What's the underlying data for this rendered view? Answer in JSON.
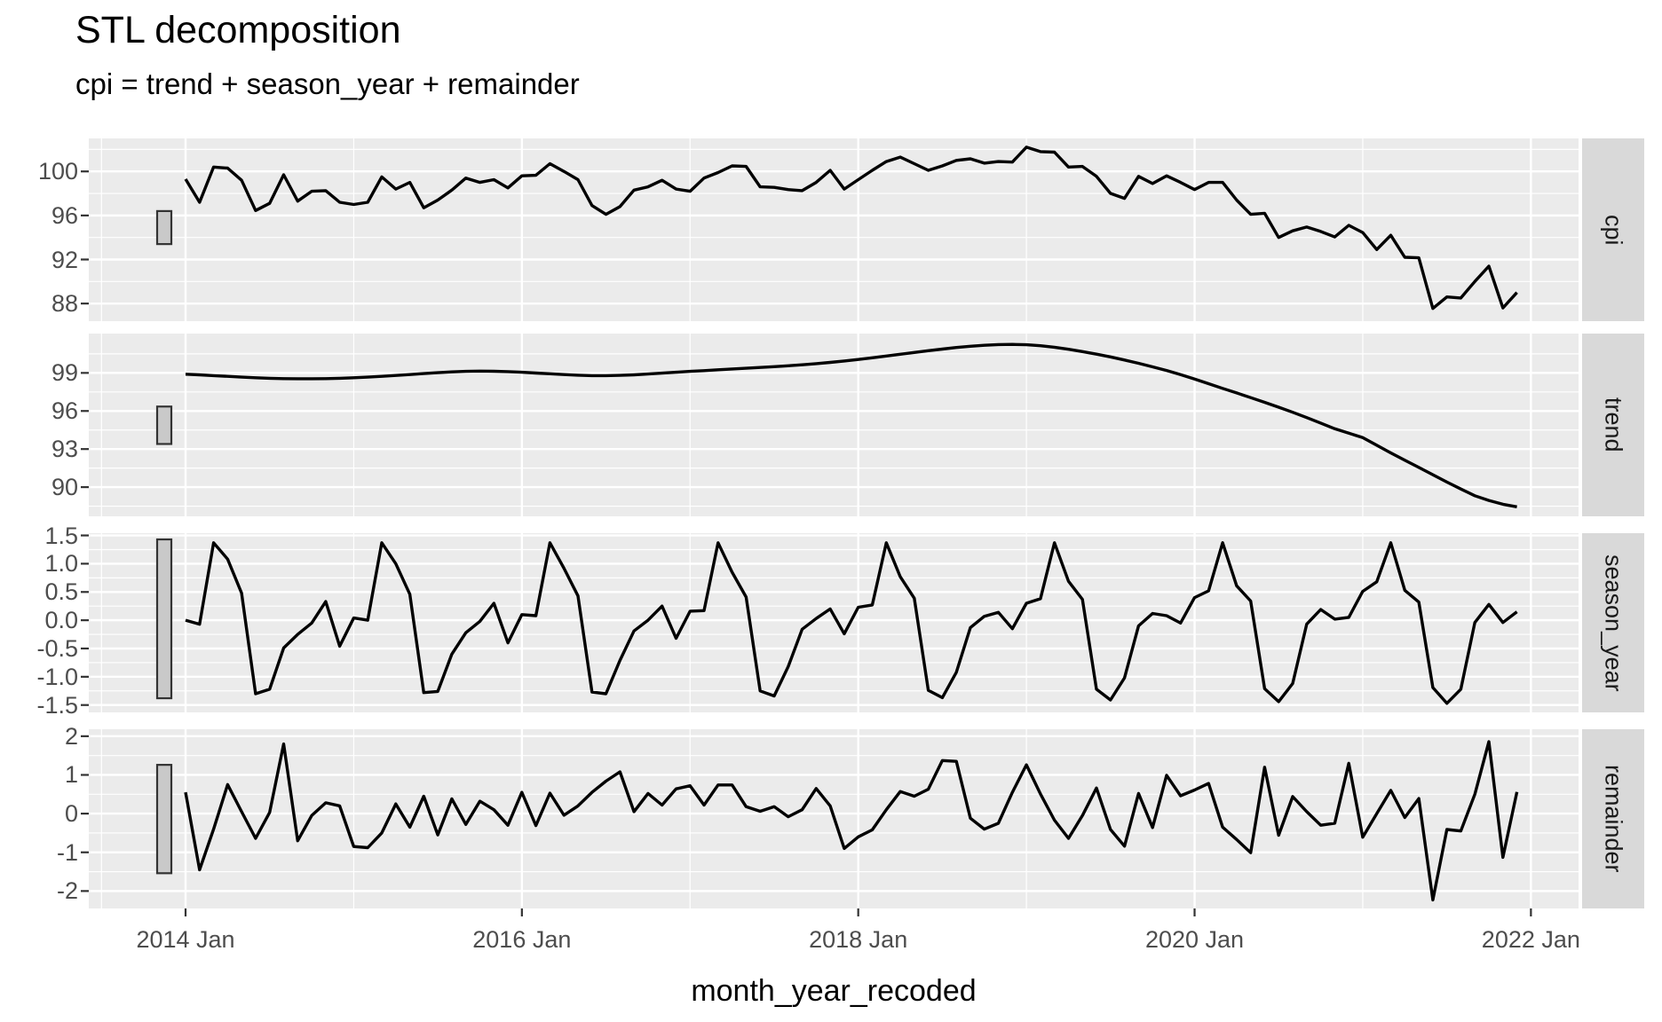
{
  "title": "STL decomposition",
  "subtitle": "cpi = trend + season_year + remainder",
  "x_axis": {
    "label": "month_year_recoded",
    "tick_labels": [
      "2014 Jan",
      "2016 Jan",
      "2018 Jan",
      "2020 Jan",
      "2022 Jan"
    ]
  },
  "chart_data": {
    "type": "line",
    "facets": "4 stacked panels sharing x axis, strip labels on right",
    "x_start": "2014 Jan",
    "x_end": "2021 Dec",
    "frequency": "monthly",
    "n_points": 96,
    "legend": "none",
    "grid": "white major and minor gridlines on gray panels",
    "panels": [
      {
        "name": "cpi",
        "ytick_labels": [
          "100",
          "96",
          "92",
          "88"
        ],
        "yticks": [
          100,
          96,
          92,
          88
        ],
        "ylim": [
          86.4,
          103.0
        ],
        "scale_bar": [
          93.4,
          96.4
        ],
        "values": [
          99.3,
          97.2,
          100.4,
          100.3,
          99.2,
          96.45,
          97.1,
          99.7,
          97.3,
          98.2,
          98.25,
          97.2,
          97.0,
          97.2,
          99.5,
          98.4,
          99.0,
          96.7,
          97.4,
          98.3,
          99.4,
          99.0,
          99.25,
          98.5,
          99.6,
          99.65,
          100.7,
          100.0,
          99.25,
          96.9,
          96.1,
          96.8,
          98.3,
          98.6,
          99.2,
          98.4,
          98.2,
          99.4,
          99.9,
          100.5,
          100.45,
          98.6,
          98.55,
          98.35,
          98.25,
          99.0,
          100.1,
          98.4,
          99.25,
          100.1,
          100.9,
          101.3,
          100.7,
          100.1,
          100.5,
          101.0,
          101.15,
          100.75,
          100.9,
          100.85,
          102.2,
          101.8,
          101.75,
          100.4,
          100.45,
          99.55,
          98.0,
          97.55,
          99.55,
          98.9,
          99.6,
          99.0,
          98.35,
          99.0,
          99.0,
          97.4,
          96.1,
          96.2,
          94.0,
          94.6,
          94.95,
          94.55,
          94.05,
          95.1,
          94.45,
          92.9,
          94.2,
          92.2,
          92.15,
          87.55,
          88.6,
          88.5,
          90.0,
          91.4,
          87.6,
          89.0
        ]
      },
      {
        "name": "trend",
        "ytick_labels": [
          "99",
          "96",
          "93",
          "90"
        ],
        "yticks": [
          99,
          96,
          93,
          90
        ],
        "ylim": [
          87.7,
          102.1
        ],
        "scale_bar": [
          93.4,
          96.35
        ],
        "values": [
          98.9,
          98.85,
          98.79,
          98.73,
          98.67,
          98.62,
          98.58,
          98.55,
          98.54,
          98.54,
          98.55,
          98.58,
          98.62,
          98.67,
          98.73,
          98.8,
          98.87,
          98.95,
          99.02,
          99.08,
          99.12,
          99.14,
          99.13,
          99.1,
          99.05,
          98.99,
          98.93,
          98.87,
          98.82,
          98.79,
          98.79,
          98.81,
          98.85,
          98.91,
          98.98,
          99.05,
          99.12,
          99.18,
          99.25,
          99.31,
          99.37,
          99.43,
          99.49,
          99.56,
          99.64,
          99.73,
          99.83,
          99.94,
          100.06,
          100.19,
          100.33,
          100.47,
          100.61,
          100.75,
          100.88,
          101.0,
          101.1,
          101.18,
          101.23,
          101.25,
          101.22,
          101.14,
          101.02,
          100.86,
          100.68,
          100.48,
          100.26,
          100.02,
          99.76,
          99.48,
          99.19,
          98.87,
          98.52,
          98.15,
          97.78,
          97.42,
          97.05,
          96.68,
          96.3,
          95.9,
          95.48,
          95.05,
          94.6,
          94.25,
          93.9,
          93.3,
          92.7,
          92.12,
          91.55,
          90.98,
          90.4,
          89.85,
          89.32,
          88.95,
          88.65,
          88.45
        ]
      },
      {
        "name": "season_year",
        "ytick_labels": [
          "1.5",
          "1.0",
          "0.5",
          "0.0",
          "-0.5",
          "-1.0",
          "-1.5"
        ],
        "yticks": [
          1.5,
          1.0,
          0.5,
          0.0,
          -0.5,
          -1.0,
          -1.5
        ],
        "ylim": [
          -1.63,
          1.54
        ],
        "scale_bar": [
          -1.38,
          1.43
        ],
        "values": [
          0.0,
          -0.07,
          1.37,
          1.08,
          0.48,
          -1.3,
          -1.22,
          -0.49,
          -0.25,
          -0.05,
          0.33,
          -0.46,
          0.04,
          0.0,
          1.37,
          1.0,
          0.46,
          -1.28,
          -1.26,
          -0.6,
          -0.22,
          -0.02,
          0.3,
          -0.4,
          0.1,
          0.08,
          1.37,
          0.92,
          0.43,
          -1.27,
          -1.3,
          -0.71,
          -0.19,
          0.0,
          0.25,
          -0.32,
          0.16,
          0.17,
          1.37,
          0.85,
          0.41,
          -1.25,
          -1.34,
          -0.82,
          -0.16,
          0.03,
          0.2,
          -0.24,
          0.23,
          0.27,
          1.37,
          0.77,
          0.39,
          -1.24,
          -1.37,
          -0.92,
          -0.13,
          0.07,
          0.14,
          -0.15,
          0.3,
          0.38,
          1.37,
          0.69,
          0.37,
          -1.22,
          -1.41,
          -1.02,
          -0.1,
          0.12,
          0.08,
          -0.05,
          0.4,
          0.52,
          1.37,
          0.61,
          0.34,
          -1.21,
          -1.44,
          -1.12,
          -0.07,
          0.19,
          0.02,
          0.05,
          0.51,
          0.68,
          1.37,
          0.53,
          0.32,
          -1.19,
          -1.47,
          -1.22,
          -0.04,
          0.28,
          -0.04,
          0.15
        ]
      },
      {
        "name": "remainder",
        "ytick_labels": [
          "2",
          "1",
          "0",
          "-1",
          "-2"
        ],
        "yticks": [
          2,
          1,
          0,
          -1,
          -2
        ],
        "ylim": [
          -2.45,
          2.18
        ],
        "scale_bar": [
          -1.54,
          1.26
        ],
        "values": [
          0.55,
          -1.45,
          -0.4,
          0.75,
          0.05,
          -0.64,
          0.03,
          1.8,
          -0.7,
          -0.05,
          0.28,
          0.2,
          -0.85,
          -0.88,
          -0.5,
          0.25,
          -0.35,
          0.45,
          -0.55,
          0.38,
          -0.28,
          0.32,
          0.1,
          -0.3,
          0.55,
          -0.31,
          0.53,
          -0.04,
          0.2,
          0.55,
          0.84,
          1.08,
          0.05,
          0.52,
          0.22,
          0.64,
          0.72,
          0.22,
          0.74,
          0.74,
          0.18,
          0.06,
          0.18,
          -0.08,
          0.1,
          0.65,
          0.2,
          -0.9,
          -0.6,
          -0.42,
          0.1,
          0.57,
          0.45,
          0.63,
          1.37,
          1.35,
          -0.12,
          -0.4,
          -0.25,
          0.55,
          1.26,
          0.51,
          -0.17,
          -0.64,
          -0.05,
          0.66,
          -0.41,
          -0.84,
          0.52,
          -0.36,
          0.99,
          0.46,
          0.61,
          0.78,
          -0.35,
          -0.67,
          -1.01,
          1.2,
          -0.56,
          0.44,
          0.05,
          -0.3,
          -0.25,
          1.3,
          -0.61,
          0.0,
          0.6,
          -0.1,
          0.39,
          -2.23,
          -0.41,
          -0.45,
          0.5,
          1.86,
          -1.13,
          0.56
        ]
      }
    ]
  },
  "style": {
    "panel_bg": "#EBEBEB",
    "strip_bg": "#D9D9D9",
    "grid_color": "#FFFFFF",
    "line_color": "#000000",
    "bar_fill": "#C9C9C9",
    "bar_stroke": "#333333",
    "tick_color": "#333333",
    "tick_label_color": "#4D4D4D"
  }
}
